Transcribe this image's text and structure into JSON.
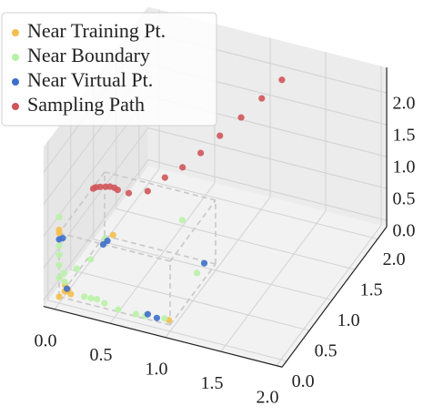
{
  "chart_data": {
    "type": "scatter3d",
    "series": [
      {
        "name": "Near Training Pt.",
        "color": "#f4bf4f",
        "x": [
          0.0,
          0.03,
          0.06,
          0.02,
          0.08,
          0.98,
          0.24,
          0.0,
          0.0,
          0.04
        ],
        "y": [
          0.0,
          0.05,
          0.02,
          0.08,
          0.06,
          0.02,
          0.6,
          0.0,
          0.0,
          0.1
        ],
        "z": [
          0.0,
          0.05,
          0.1,
          0.12,
          0.02,
          0.05,
          0.5,
          1.05,
          1.0,
          0.03
        ]
      },
      {
        "name": "Near Boundary",
        "color": "#b8f2a6",
        "x": [
          0.86,
          0.91,
          0.92,
          0.52,
          0.25,
          0.19,
          0.38,
          0.68,
          0.76,
          0.01,
          0.0,
          0.0,
          0.0,
          0.1,
          0.01,
          0.2,
          0.0,
          0.0,
          0.03,
          0.3
        ],
        "y": [
          0.61,
          0.81,
          0.07,
          0.03,
          0.09,
          0.09,
          0.07,
          0.03,
          0.04,
          0.08,
          0.0,
          0.0,
          0.0,
          0.45,
          0.36,
          0.52,
          0.0,
          0.0,
          0.05,
          0.1
        ],
        "z": [
          1.0,
          0.0,
          0.0,
          0.0,
          0.0,
          0.0,
          0.0,
          0.0,
          0.0,
          0.3,
          0.66,
          0.8,
          0.5,
          0.2,
          0.1,
          0.5,
          1.25,
          0.3,
          0.2,
          0.0
        ]
      },
      {
        "name": "Near Virtual Pt.",
        "color": "#3e6fcb",
        "x": [
          0.91,
          0.77,
          0.86,
          0.23,
          0.2,
          0.0,
          0.05,
          0.02
        ],
        "y": [
          0.97,
          0.07,
          0.05,
          0.5,
          0.48,
          0.0,
          0.05,
          0.03
        ],
        "z": [
          0.0,
          0.0,
          0.0,
          0.5,
          0.45,
          0.9,
          0.1,
          0.9
        ]
      },
      {
        "name": "Sampling Path",
        "color": "#d0555a",
        "x": [
          1.29,
          1.17,
          1.05,
          0.92,
          0.8,
          0.69,
          0.56,
          0.47,
          0.32,
          0.2,
          0.17,
          0.13,
          0.09,
          0.05,
          0.02,
          0.0
        ],
        "y": [
          1.75,
          1.6,
          1.44,
          1.29,
          1.16,
          1.03,
          0.96,
          0.8,
          0.75,
          0.8,
          0.8,
          0.8,
          0.8,
          0.78,
          0.76,
          0.75
        ],
        "z": [
          2.3,
          2.1,
          1.9,
          1.7,
          1.5,
          1.35,
          1.2,
          1.1,
          1.05,
          1.0,
          1.02,
          1.02,
          1.0,
          1.0,
          1.0,
          0.98
        ]
      }
    ],
    "xlim": [
      -0.1,
      2.05
    ],
    "ylim": [
      -0.1,
      2.2
    ],
    "zlim": [
      -0.1,
      2.4
    ],
    "xticks": [
      {
        "value": 0,
        "label": "0.0"
      },
      {
        "value": 0.5,
        "label": "0.5"
      },
      {
        "value": 1,
        "label": "1.0"
      },
      {
        "value": 1.5,
        "label": "1.5"
      },
      {
        "value": 2,
        "label": "2.0"
      }
    ],
    "yticks": [
      {
        "value": 0,
        "label": "0.0"
      },
      {
        "value": 0.5,
        "label": "0.5"
      },
      {
        "value": 1,
        "label": "1.0"
      },
      {
        "value": 1.5,
        "label": "1.5"
      },
      {
        "value": 2,
        "label": "2.0"
      }
    ],
    "zticks": [
      {
        "value": 0,
        "label": "0.0"
      },
      {
        "value": 0.5,
        "label": "0.5"
      },
      {
        "value": 1,
        "label": "1.0"
      },
      {
        "value": 1.5,
        "label": "1.5"
      },
      {
        "value": 2,
        "label": "2.0"
      }
    ],
    "grid": true,
    "legend": "upper left"
  }
}
